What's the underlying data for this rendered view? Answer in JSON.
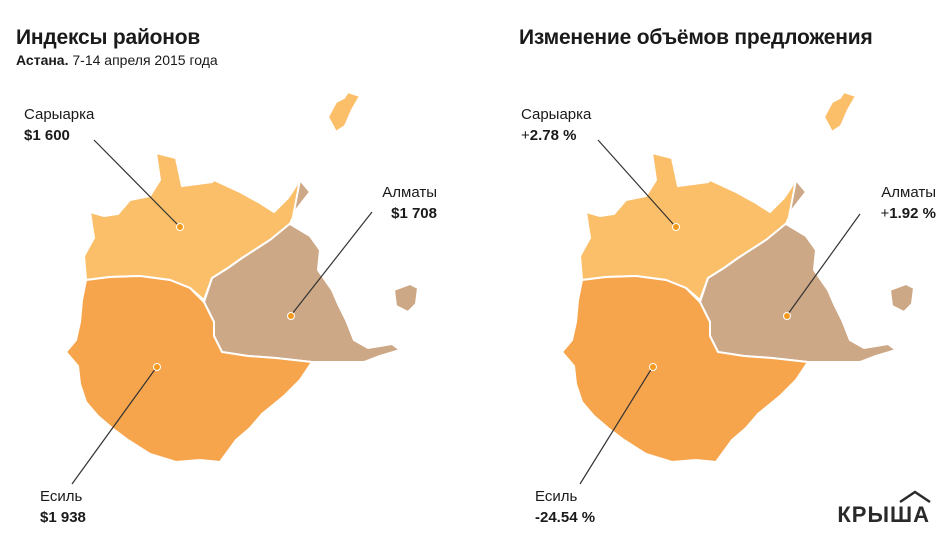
{
  "left": {
    "title": "Индексы районов",
    "subtitle_city": "Астана.",
    "subtitle_dates": " 7-14 апреля 2015 года",
    "districts": {
      "saryarka": {
        "name": "Сарыарка",
        "value": "$1 600"
      },
      "almaty": {
        "name": "Алматы",
        "value": "$1 708"
      },
      "esil": {
        "name": "Есиль",
        "value": "$1 938"
      }
    }
  },
  "right": {
    "title": "Изменение объёмов предложения",
    "districts": {
      "saryarka": {
        "name": "Сарыарка",
        "sign": "+",
        "value": "2.78 %"
      },
      "almaty": {
        "name": "Алматы",
        "sign": "+",
        "value": "1.92 %"
      },
      "esil": {
        "name": "Есиль",
        "sign": "",
        "value": "-24.54 %"
      }
    }
  },
  "colors": {
    "saryarka": "#fbbf6a",
    "almaty": "#cda886",
    "esil": "#f7a54d",
    "marker": "#f29a1e",
    "leader": "#333333"
  },
  "logo": {
    "text": "КРЫША"
  }
}
